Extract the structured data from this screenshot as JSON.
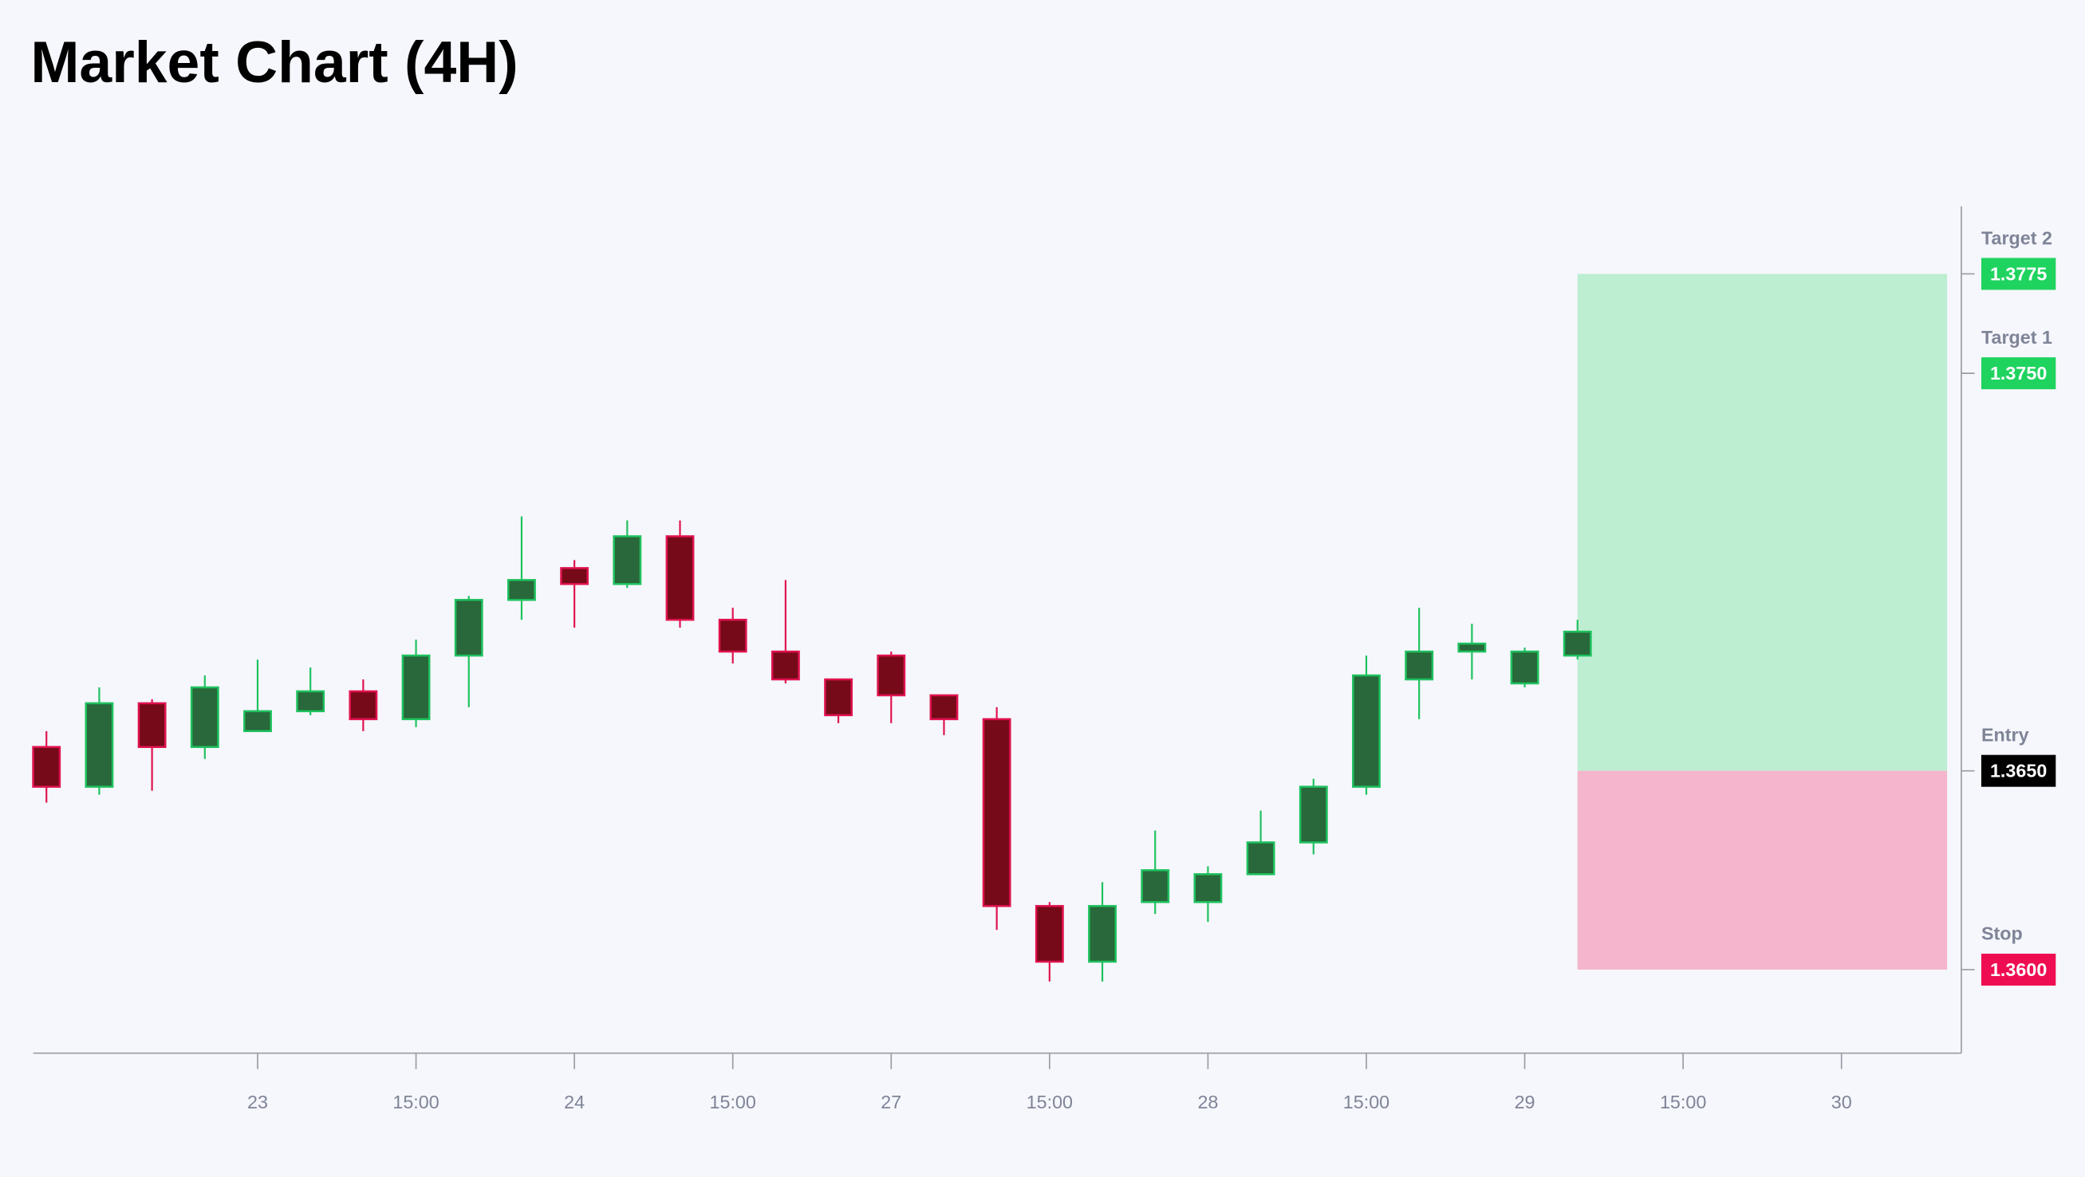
{
  "chart_data": {
    "type": "candlestick",
    "title": "Market Chart (4H)",
    "x": [
      0,
      1,
      2,
      3,
      4,
      5,
      6,
      7,
      8,
      9,
      10,
      11,
      12,
      13,
      14,
      15,
      16,
      17,
      18,
      19,
      20,
      21,
      22,
      23,
      24,
      25,
      26,
      27,
      28,
      29
    ],
    "open": [
      1.3656,
      1.3646,
      1.3667,
      1.3656,
      1.366,
      1.3665,
      1.367,
      1.3663,
      1.3679,
      1.3693,
      1.3701,
      1.3697,
      1.3709,
      1.3688,
      1.368,
      1.3673,
      1.3679,
      1.3669,
      1.3663,
      1.3616,
      1.3602,
      1.3617,
      1.3617,
      1.3624,
      1.3632,
      1.3646,
      1.3673,
      1.368,
      1.3672,
      1.3679
    ],
    "high": [
      1.366,
      1.3671,
      1.3668,
      1.3674,
      1.3678,
      1.3676,
      1.3673,
      1.3683,
      1.3694,
      1.3714,
      1.3703,
      1.3713,
      1.3713,
      1.3691,
      1.3698,
      1.3673,
      1.368,
      1.3669,
      1.3666,
      1.3617,
      1.3622,
      1.3635,
      1.3626,
      1.364,
      1.3648,
      1.3679,
      1.3691,
      1.3687,
      1.3681,
      1.3688
    ],
    "low": [
      1.3642,
      1.3644,
      1.3645,
      1.3653,
      1.366,
      1.3664,
      1.366,
      1.3661,
      1.3666,
      1.3688,
      1.3686,
      1.3696,
      1.3686,
      1.3677,
      1.3672,
      1.3662,
      1.3662,
      1.3659,
      1.361,
      1.3597,
      1.3597,
      1.3614,
      1.3612,
      1.3624,
      1.3629,
      1.3644,
      1.3663,
      1.3673,
      1.3671,
      1.3678
    ],
    "close": [
      1.3646,
      1.3667,
      1.3656,
      1.3671,
      1.3665,
      1.367,
      1.3663,
      1.3679,
      1.3693,
      1.3698,
      1.3697,
      1.3709,
      1.3688,
      1.368,
      1.3673,
      1.3664,
      1.3669,
      1.3663,
      1.3616,
      1.3602,
      1.3616,
      1.3625,
      1.3624,
      1.3632,
      1.3646,
      1.3674,
      1.368,
      1.3682,
      1.368,
      1.3685
    ],
    "up_color": {
      "body": "#28683a",
      "border": "#1ec15e"
    },
    "down_color": {
      "body": "#760a18",
      "border": "#e0124f"
    },
    "xlim": [
      -0.25,
      36.27
    ],
    "xticks": [
      {
        "value": 4,
        "label": "23"
      },
      {
        "value": 7,
        "label": "15:00"
      },
      {
        "value": 10,
        "label": "24"
      },
      {
        "value": 13,
        "label": "15:00"
      },
      {
        "value": 16,
        "label": "27"
      },
      {
        "value": 19,
        "label": "15:00"
      },
      {
        "value": 22,
        "label": "28"
      },
      {
        "value": 25,
        "label": "15:00"
      },
      {
        "value": 28,
        "label": "29"
      },
      {
        "value": 31,
        "label": "15:00"
      },
      {
        "value": 34,
        "label": "30"
      }
    ],
    "ylim": [
      1.3579,
      1.3792
    ],
    "levels": [
      {
        "name": "Target 2",
        "value": 1.3775,
        "color": "#1fd35f"
      },
      {
        "name": "Target 1",
        "value": 1.375,
        "label": "1.3750",
        "color": "#1fd35f"
      },
      {
        "name": "Entry",
        "value": 1.365,
        "label": "1.3650",
        "color": "#000000"
      },
      {
        "name": "Stop",
        "value": 1.36,
        "label": "1.3600",
        "color": "#ef0d52"
      }
    ],
    "position": {
      "start": 29,
      "end": 36,
      "profit_color": "#bdeed1",
      "loss_color": "#f5b5cc"
    }
  }
}
